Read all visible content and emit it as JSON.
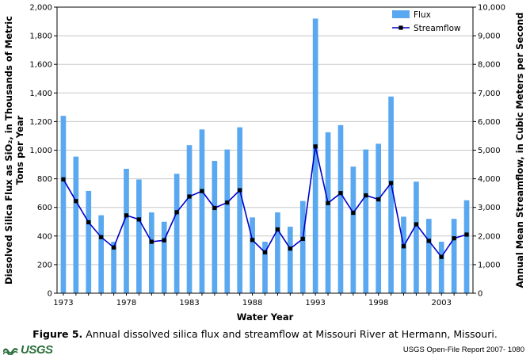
{
  "chart_data": {
    "type": "bar+line",
    "x": [
      1973,
      1974,
      1975,
      1976,
      1977,
      1978,
      1979,
      1980,
      1981,
      1982,
      1983,
      1984,
      1985,
      1986,
      1987,
      1988,
      1989,
      1990,
      1991,
      1992,
      1993,
      1994,
      1995,
      1996,
      1997,
      1998,
      1999,
      2000,
      2001,
      2002,
      2003,
      2004,
      2005
    ],
    "series": [
      {
        "name": "Flux",
        "kind": "bar",
        "axis": "left",
        "color": "#5aa8f0",
        "values": [
          1240,
          955,
          715,
          545,
          360,
          870,
          795,
          565,
          500,
          835,
          1035,
          1145,
          925,
          1005,
          1160,
          530,
          360,
          565,
          465,
          645,
          1920,
          1125,
          1175,
          885,
          1005,
          1045,
          1375,
          535,
          780,
          520,
          360,
          520,
          650
        ]
      },
      {
        "name": "Streamflow",
        "kind": "line",
        "axis": "right",
        "color": "#0000cc",
        "values": [
          3980,
          3220,
          2480,
          1960,
          1600,
          2720,
          2580,
          1800,
          1850,
          2830,
          3380,
          3570,
          2980,
          3170,
          3600,
          1860,
          1430,
          2230,
          1560,
          1900,
          5130,
          3150,
          3500,
          2810,
          3420,
          3280,
          3850,
          1640,
          2410,
          1830,
          1270,
          1920,
          2050
        ]
      }
    ],
    "title": "",
    "xlabel": "Water Year",
    "ylabel_left": "Dissolved Silica Flux as SiO₂, in Thousands of Metric Tons per Year",
    "ylabel_right": "Annual Mean Streamflow, in Cubic Meters per Second",
    "ylim_left": [
      0,
      2000
    ],
    "ylim_right": [
      0,
      10000
    ],
    "yticks_left": [
      "0",
      "200",
      "400",
      "600",
      "800",
      "1,000",
      "1,200",
      "1,400",
      "1,600",
      "1,800",
      "2,000"
    ],
    "yticks_right": [
      "0",
      "1,000",
      "2,000",
      "3,000",
      "4,000",
      "5,000",
      "6,000",
      "7,000",
      "8,000",
      "9,000",
      "10,000"
    ],
    "xtick_labels": [
      "1973",
      "1978",
      "1983",
      "1988",
      "1993",
      "1998",
      "2003"
    ],
    "legend": "top-right",
    "grid": true
  },
  "caption": {
    "label": "Figure 5.",
    "text": "Annual dissolved silica flux and streamflow at Missouri River at Hermann, Missouri."
  },
  "logo": {
    "text": "USGS"
  },
  "report": {
    "text": "USGS Open-File Report 2007- 1080"
  }
}
